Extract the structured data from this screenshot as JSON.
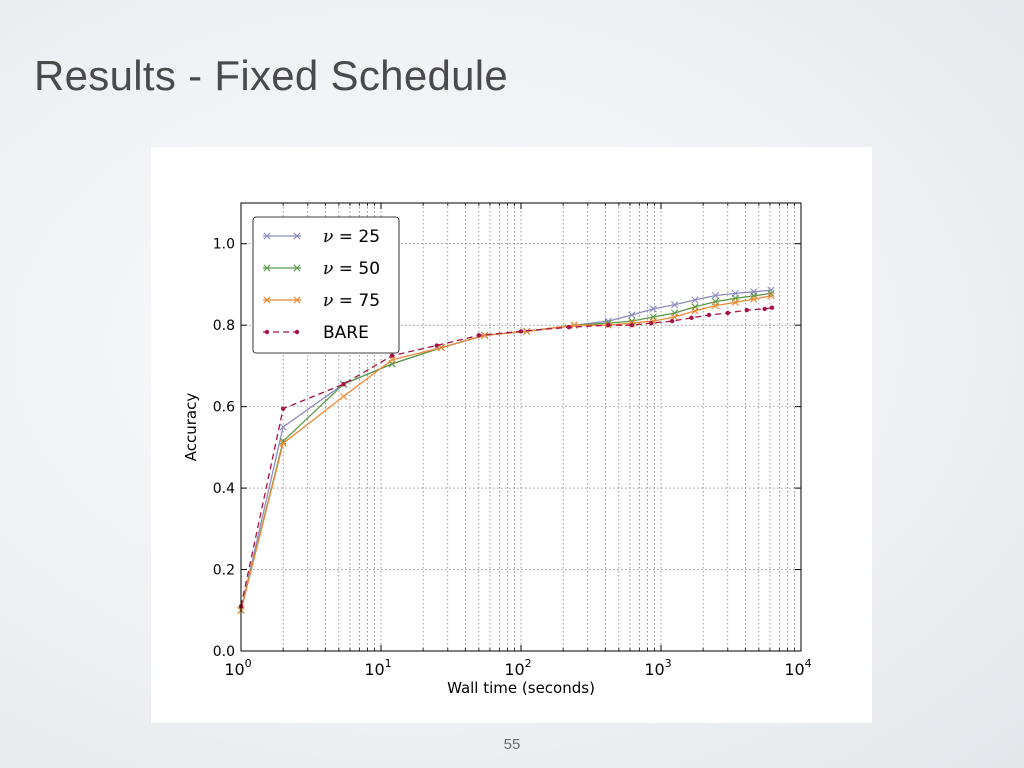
{
  "slide": {
    "title": "Results - Fixed Schedule",
    "page_number": "55"
  },
  "chart_data": {
    "type": "line",
    "title": "",
    "xlabel": "Wall time (seconds)",
    "ylabel": "Accuracy",
    "xscale": "log",
    "xlim": [
      1,
      10000
    ],
    "ylim": [
      0.0,
      1.1
    ],
    "x_ticks": [
      {
        "value": 1,
        "base": "10",
        "exp": "0"
      },
      {
        "value": 10,
        "base": "10",
        "exp": "1"
      },
      {
        "value": 100,
        "base": "10",
        "exp": "2"
      },
      {
        "value": 1000,
        "base": "10",
        "exp": "3"
      },
      {
        "value": 10000,
        "base": "10",
        "exp": "4"
      }
    ],
    "y_ticks": [
      {
        "value": 0.0,
        "label": "0.0"
      },
      {
        "value": 0.2,
        "label": "0.2"
      },
      {
        "value": 0.4,
        "label": "0.4"
      },
      {
        "value": 0.6,
        "label": "0.6"
      },
      {
        "value": 0.8,
        "label": "0.8"
      },
      {
        "value": 1.0,
        "label": "1.0"
      }
    ],
    "grid": true,
    "legend_position": "top-left",
    "series": [
      {
        "name": "ν = 25",
        "legend_symbol": "ν",
        "legend_suffix": "= 25",
        "color": "#8c8cc0",
        "marker": "x",
        "linestyle": "solid",
        "points": [
          [
            1.0,
            0.1
          ],
          [
            2.0,
            0.55
          ],
          [
            5.4,
            0.655
          ],
          [
            12.0,
            0.705
          ],
          [
            27,
            0.745
          ],
          [
            55,
            0.775
          ],
          [
            110,
            0.785
          ],
          [
            240,
            0.8
          ],
          [
            420,
            0.81
          ],
          [
            620,
            0.825
          ],
          [
            880,
            0.84
          ],
          [
            1250,
            0.85
          ],
          [
            1750,
            0.862
          ],
          [
            2450,
            0.873
          ],
          [
            3400,
            0.878
          ],
          [
            4600,
            0.882
          ],
          [
            6100,
            0.886
          ]
        ]
      },
      {
        "name": "ν = 50",
        "legend_symbol": "ν",
        "legend_suffix": "= 50",
        "color": "#5a9a4a",
        "marker": "x",
        "linestyle": "solid",
        "points": [
          [
            1.0,
            0.1
          ],
          [
            2.0,
            0.515
          ],
          [
            5.4,
            0.655
          ],
          [
            12.0,
            0.705
          ],
          [
            27,
            0.745
          ],
          [
            55,
            0.775
          ],
          [
            110,
            0.785
          ],
          [
            240,
            0.8
          ],
          [
            420,
            0.805
          ],
          [
            620,
            0.81
          ],
          [
            880,
            0.82
          ],
          [
            1250,
            0.83
          ],
          [
            1750,
            0.845
          ],
          [
            2450,
            0.858
          ],
          [
            3400,
            0.866
          ],
          [
            4600,
            0.872
          ],
          [
            6100,
            0.878
          ]
        ]
      },
      {
        "name": "ν = 75",
        "legend_symbol": "ν",
        "legend_suffix": "= 75",
        "color": "#ee8833",
        "marker": "x",
        "linestyle": "solid",
        "points": [
          [
            1.0,
            0.1
          ],
          [
            2.0,
            0.51
          ],
          [
            5.4,
            0.625
          ],
          [
            12.0,
            0.715
          ],
          [
            27,
            0.745
          ],
          [
            55,
            0.775
          ],
          [
            110,
            0.785
          ],
          [
            240,
            0.8
          ],
          [
            420,
            0.8
          ],
          [
            620,
            0.805
          ],
          [
            880,
            0.81
          ],
          [
            1250,
            0.82
          ],
          [
            1750,
            0.835
          ],
          [
            2450,
            0.848
          ],
          [
            3400,
            0.856
          ],
          [
            4600,
            0.864
          ],
          [
            6100,
            0.872
          ]
        ]
      },
      {
        "name": "BARE",
        "legend_symbol": "",
        "legend_suffix": "BARE",
        "color": "#aa1144",
        "marker": "dot",
        "linestyle": "dashed",
        "points": [
          [
            1.0,
            0.11
          ],
          [
            2.0,
            0.595
          ],
          [
            5.4,
            0.655
          ],
          [
            12.0,
            0.725
          ],
          [
            25,
            0.75
          ],
          [
            50,
            0.775
          ],
          [
            100,
            0.785
          ],
          [
            220,
            0.795
          ],
          [
            420,
            0.8
          ],
          [
            620,
            0.8
          ],
          [
            850,
            0.805
          ],
          [
            1200,
            0.81
          ],
          [
            1650,
            0.818
          ],
          [
            2200,
            0.825
          ],
          [
            3000,
            0.83
          ],
          [
            4100,
            0.837
          ],
          [
            5500,
            0.84
          ],
          [
            6200,
            0.843
          ]
        ]
      }
    ]
  }
}
